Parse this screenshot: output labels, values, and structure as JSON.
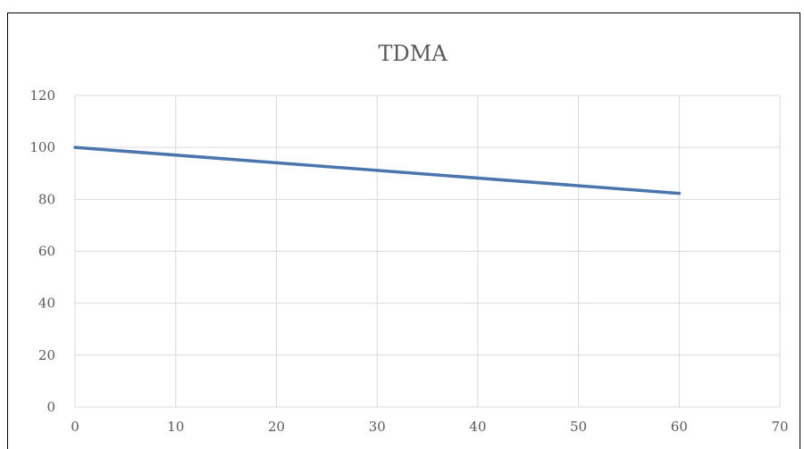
{
  "chart_data": {
    "type": "line",
    "title": "TDMA",
    "xlabel": "",
    "ylabel": "",
    "xlim": [
      0,
      70
    ],
    "ylim": [
      0,
      120
    ],
    "x_ticks": [
      0,
      10,
      20,
      30,
      40,
      50,
      60,
      70
    ],
    "y_ticks": [
      0,
      20,
      40,
      60,
      80,
      100,
      120
    ],
    "grid": true,
    "legend": "none",
    "series": [
      {
        "color": "#4a76ad",
        "x": [
          0,
          60
        ],
        "y": [
          100,
          82.3
        ]
      }
    ]
  }
}
